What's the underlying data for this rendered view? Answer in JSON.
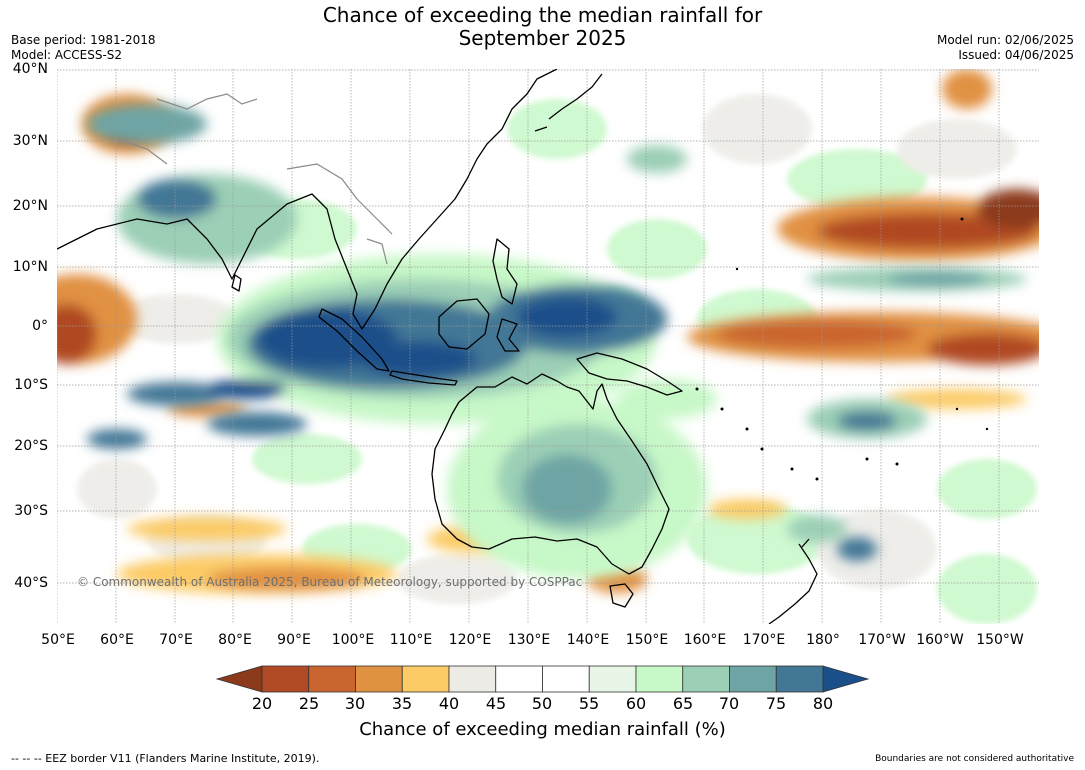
{
  "title": {
    "line1": "Chance of exceeding the median rainfall for",
    "line2": "September 2025"
  },
  "meta": {
    "base_period": "Base period: 1981-2018",
    "model": "Model: ACCESS-S2",
    "model_run": "Model run: 02/06/2025",
    "issued": "Issued: 04/06/2025"
  },
  "map": {
    "lat_labels": [
      "40°N",
      "30°N",
      "20°N",
      "10°N",
      "0°",
      "10°S",
      "20°S",
      "30°S",
      "40°S"
    ],
    "lon_labels": [
      "50°E",
      "60°E",
      "70°E",
      "80°E",
      "90°E",
      "100°E",
      "110°E",
      "120°E",
      "130°E",
      "140°E",
      "150°E",
      "160°E",
      "170°E",
      "180°",
      "170°W",
      "160°W",
      "150°W"
    ],
    "copyright": "© Commonwealth of Australia 2025, Bureau of Meteorology, supported by COSPPac"
  },
  "legend": {
    "ticks": [
      "20",
      "25",
      "30",
      "35",
      "40",
      "45",
      "50",
      "55",
      "60",
      "65",
      "70",
      "75",
      "80"
    ],
    "colors": [
      "#8c3a1c",
      "#b04a24",
      "#c9652e",
      "#e19142",
      "#fccb66",
      "#ecebe6",
      "#ffffff",
      "#ffffff",
      "#e8f6e8",
      "#c7f8c8",
      "#9bcfb6",
      "#6ea5a4",
      "#437796",
      "#1a4f8a"
    ],
    "label": "Chance of exceeding median rainfall (%)"
  },
  "footer": {
    "eez": "--  --  -- EEZ border V11 (Flanders Marine Institute, 2019).",
    "disclaimer": "Boundaries are not considered authoritative"
  }
}
